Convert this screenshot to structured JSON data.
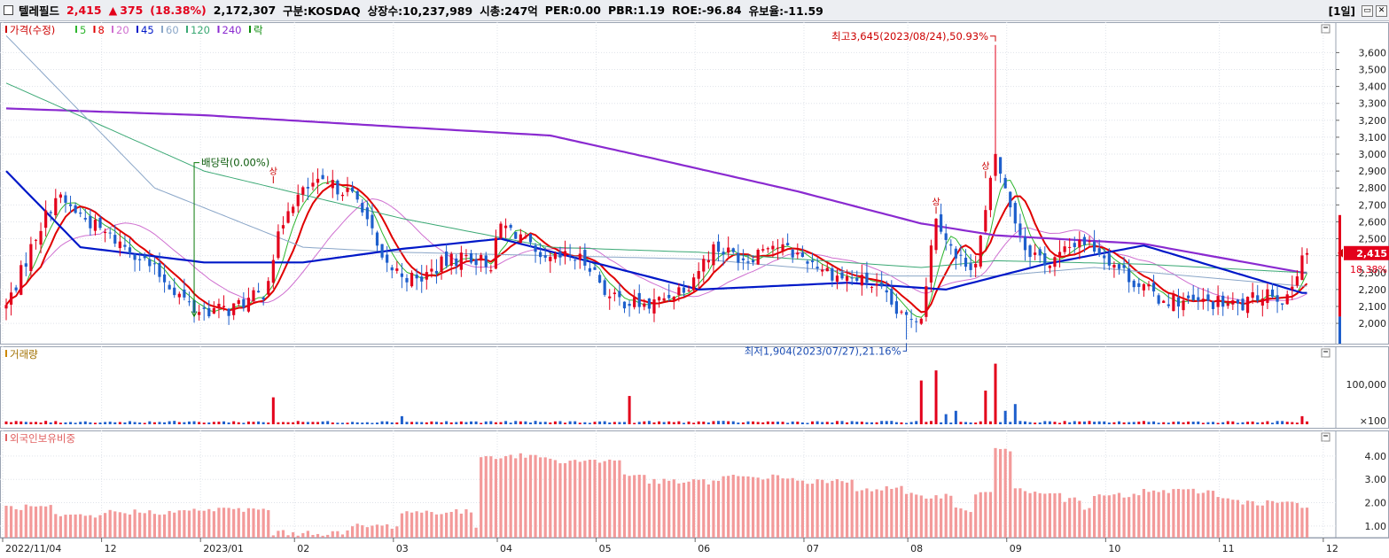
{
  "header": {
    "name": "텔레필드",
    "price": "2,415",
    "arrow": "▲",
    "change": "375",
    "pct": "(18.38%)",
    "volume": "2,172,307",
    "market": "구분:KOSDAQ",
    "listed": "상장수:10,237,989",
    "mcap": "시총:247억",
    "per": "PER:0.00",
    "pbr": "PBR:1.19",
    "roe": "ROE:-96.84",
    "float": "유보율:-11.59",
    "period": "[1일]"
  },
  "colors": {
    "up": "#e3001b",
    "down": "#1e5fcc",
    "ma5": "#2db52d",
    "ma8": "#e00000",
    "ma20": "#cf6fd0",
    "ma45": "#0018c8",
    "ma60": "#8aa6c8",
    "ma120": "#3aa874",
    "ma240": "#8a2ad0",
    "foreign": "#f39a9a",
    "grid": "#dfe3ea"
  },
  "panels": {
    "price": {
      "legend": [
        "가격(수정)",
        "5",
        "8",
        "20",
        "45",
        "60",
        "120",
        "240",
        "락"
      ]
    },
    "volume": {
      "legend": "거래량"
    },
    "foreign": {
      "legend": "외국인보유비중"
    }
  },
  "annotations": {
    "high": "최고3,645(2023/08/24),50.93%",
    "low": "최저1,904(2023/07/27),21.16%",
    "dividend": "배당락(0.00%)",
    "lock": "상"
  },
  "price_marker": {
    "value": "2,415",
    "pct": "18.38%"
  },
  "chart_data": [
    {
      "type": "candlestick",
      "title": "가격(수정)",
      "series_names": [
        "5",
        "8",
        "20",
        "45",
        "60",
        "120",
        "240"
      ],
      "y_ticks": [
        "3,600",
        "3,500",
        "3,400",
        "3,300",
        "3,200",
        "3,100",
        "3,000",
        "2,900",
        "2,800",
        "2,700",
        "2,600",
        "2,500",
        "2,400",
        "2,300",
        "2,200",
        "2,100",
        "2,000"
      ],
      "ylim": [
        1880,
        3780
      ],
      "x_labels": [
        "2022/11/04",
        "12",
        "2023/01",
        "02",
        "03",
        "04",
        "05",
        "06",
        "07",
        "08",
        "09",
        "10",
        "11",
        "12"
      ],
      "x_label_days": [
        0,
        20,
        40,
        59,
        79,
        100,
        120,
        140,
        162,
        183,
        203,
        223,
        246,
        267
      ],
      "days": 263,
      "anchors": [
        [
          0,
          2100
        ],
        [
          3,
          2300
        ],
        [
          6,
          2520
        ],
        [
          10,
          2750
        ],
        [
          15,
          2640
        ],
        [
          20,
          2530
        ],
        [
          26,
          2420
        ],
        [
          33,
          2230
        ],
        [
          38,
          2080
        ],
        [
          45,
          2080
        ],
        [
          52,
          2180
        ],
        [
          54,
          2400
        ],
        [
          57,
          2700
        ],
        [
          62,
          2820
        ],
        [
          68,
          2800
        ],
        [
          72,
          2700
        ],
        [
          76,
          2350
        ],
        [
          83,
          2250
        ],
        [
          88,
          2350
        ],
        [
          93,
          2400
        ],
        [
          98,
          2350
        ],
        [
          100,
          2580
        ],
        [
          104,
          2520
        ],
        [
          108,
          2350
        ],
        [
          114,
          2400
        ],
        [
          118,
          2350
        ],
        [
          122,
          2150
        ],
        [
          130,
          2100
        ],
        [
          134,
          2170
        ],
        [
          138,
          2240
        ],
        [
          143,
          2450
        ],
        [
          150,
          2380
        ],
        [
          154,
          2480
        ],
        [
          162,
          2380
        ],
        [
          168,
          2280
        ],
        [
          174,
          2250
        ],
        [
          177,
          2180
        ],
        [
          181,
          2030
        ],
        [
          185,
          2050
        ],
        [
          188,
          2650
        ],
        [
          192,
          2380
        ],
        [
          196,
          2350
        ],
        [
          198,
          2650
        ],
        [
          200,
          3000
        ],
        [
          202,
          2780
        ],
        [
          206,
          2450
        ],
        [
          211,
          2350
        ],
        [
          217,
          2500
        ],
        [
          220,
          2450
        ],
        [
          223,
          2380
        ],
        [
          228,
          2250
        ],
        [
          233,
          2150
        ],
        [
          240,
          2120
        ],
        [
          245,
          2120
        ],
        [
          250,
          2100
        ],
        [
          255,
          2200
        ],
        [
          259,
          2130
        ],
        [
          262,
          2415
        ]
      ],
      "ma_curves": {
        "240": [
          [
            0,
            3270
          ],
          [
            40,
            3230
          ],
          [
            80,
            3160
          ],
          [
            110,
            3110
          ],
          [
            130,
            2980
          ],
          [
            160,
            2780
          ],
          [
            185,
            2590
          ],
          [
            200,
            2520
          ],
          [
            230,
            2470
          ],
          [
            262,
            2300
          ]
        ],
        "120": [
          [
            0,
            3420
          ],
          [
            40,
            2900
          ],
          [
            80,
            2620
          ],
          [
            110,
            2450
          ],
          [
            140,
            2420
          ],
          [
            185,
            2330
          ],
          [
            200,
            2370
          ],
          [
            230,
            2350
          ],
          [
            262,
            2300
          ]
        ],
        "60": [
          [
            0,
            3700
          ],
          [
            30,
            2800
          ],
          [
            60,
            2450
          ],
          [
            80,
            2420
          ],
          [
            110,
            2400
          ],
          [
            140,
            2380
          ],
          [
            180,
            2280
          ],
          [
            200,
            2280
          ],
          [
            220,
            2330
          ],
          [
            262,
            2220
          ]
        ],
        "45": [
          [
            0,
            2900
          ],
          [
            15,
            2450
          ],
          [
            40,
            2360
          ],
          [
            60,
            2360
          ],
          [
            80,
            2440
          ],
          [
            100,
            2500
          ],
          [
            120,
            2350
          ],
          [
            140,
            2200
          ],
          [
            170,
            2240
          ],
          [
            190,
            2200
          ],
          [
            210,
            2350
          ],
          [
            230,
            2460
          ],
          [
            262,
            2180
          ]
        ]
      },
      "high": {
        "day": 200,
        "value": 3645,
        "label": "최고3,645(2023/08/24),50.93%"
      },
      "low": {
        "day": 182,
        "value": 1904,
        "label": "최저1,904(2023/07/27),21.16%"
      }
    },
    {
      "type": "bar",
      "title": "거래량",
      "y_ticks": [
        "100,000",
        "×100"
      ],
      "spikes": [
        [
          54,
          0.4
        ],
        [
          80,
          0.12
        ],
        [
          126,
          0.42
        ],
        [
          185,
          0.65
        ],
        [
          188,
          0.8
        ],
        [
          190,
          0.15
        ],
        [
          192,
          0.2
        ],
        [
          198,
          0.5
        ],
        [
          200,
          0.9
        ],
        [
          202,
          0.2
        ],
        [
          204,
          0.3
        ],
        [
          262,
          0.12
        ]
      ]
    },
    {
      "type": "bar",
      "title": "외국인보유비중",
      "y_ticks": [
        "4.00",
        "3.00",
        "2.00",
        "1.00"
      ],
      "ylim": [
        0.5,
        5.1
      ],
      "segments": [
        [
          0,
          1.8
        ],
        [
          10,
          1.4
        ],
        [
          20,
          1.6
        ],
        [
          38,
          1.7
        ],
        [
          54,
          0.7
        ],
        [
          70,
          1.0
        ],
        [
          80,
          1.6
        ],
        [
          95,
          1.0
        ],
        [
          96,
          4.0
        ],
        [
          110,
          3.8
        ],
        [
          125,
          3.2
        ],
        [
          130,
          2.9
        ],
        [
          145,
          3.1
        ],
        [
          160,
          2.9
        ],
        [
          172,
          2.6
        ],
        [
          182,
          2.3
        ],
        [
          192,
          1.7
        ],
        [
          196,
          2.4
        ],
        [
          200,
          4.3
        ],
        [
          204,
          2.5
        ],
        [
          214,
          2.1
        ],
        [
          218,
          1.7
        ],
        [
          220,
          2.3
        ],
        [
          230,
          2.5
        ],
        [
          245,
          2.2
        ],
        [
          250,
          2.0
        ],
        [
          262,
          1.7
        ]
      ]
    }
  ]
}
